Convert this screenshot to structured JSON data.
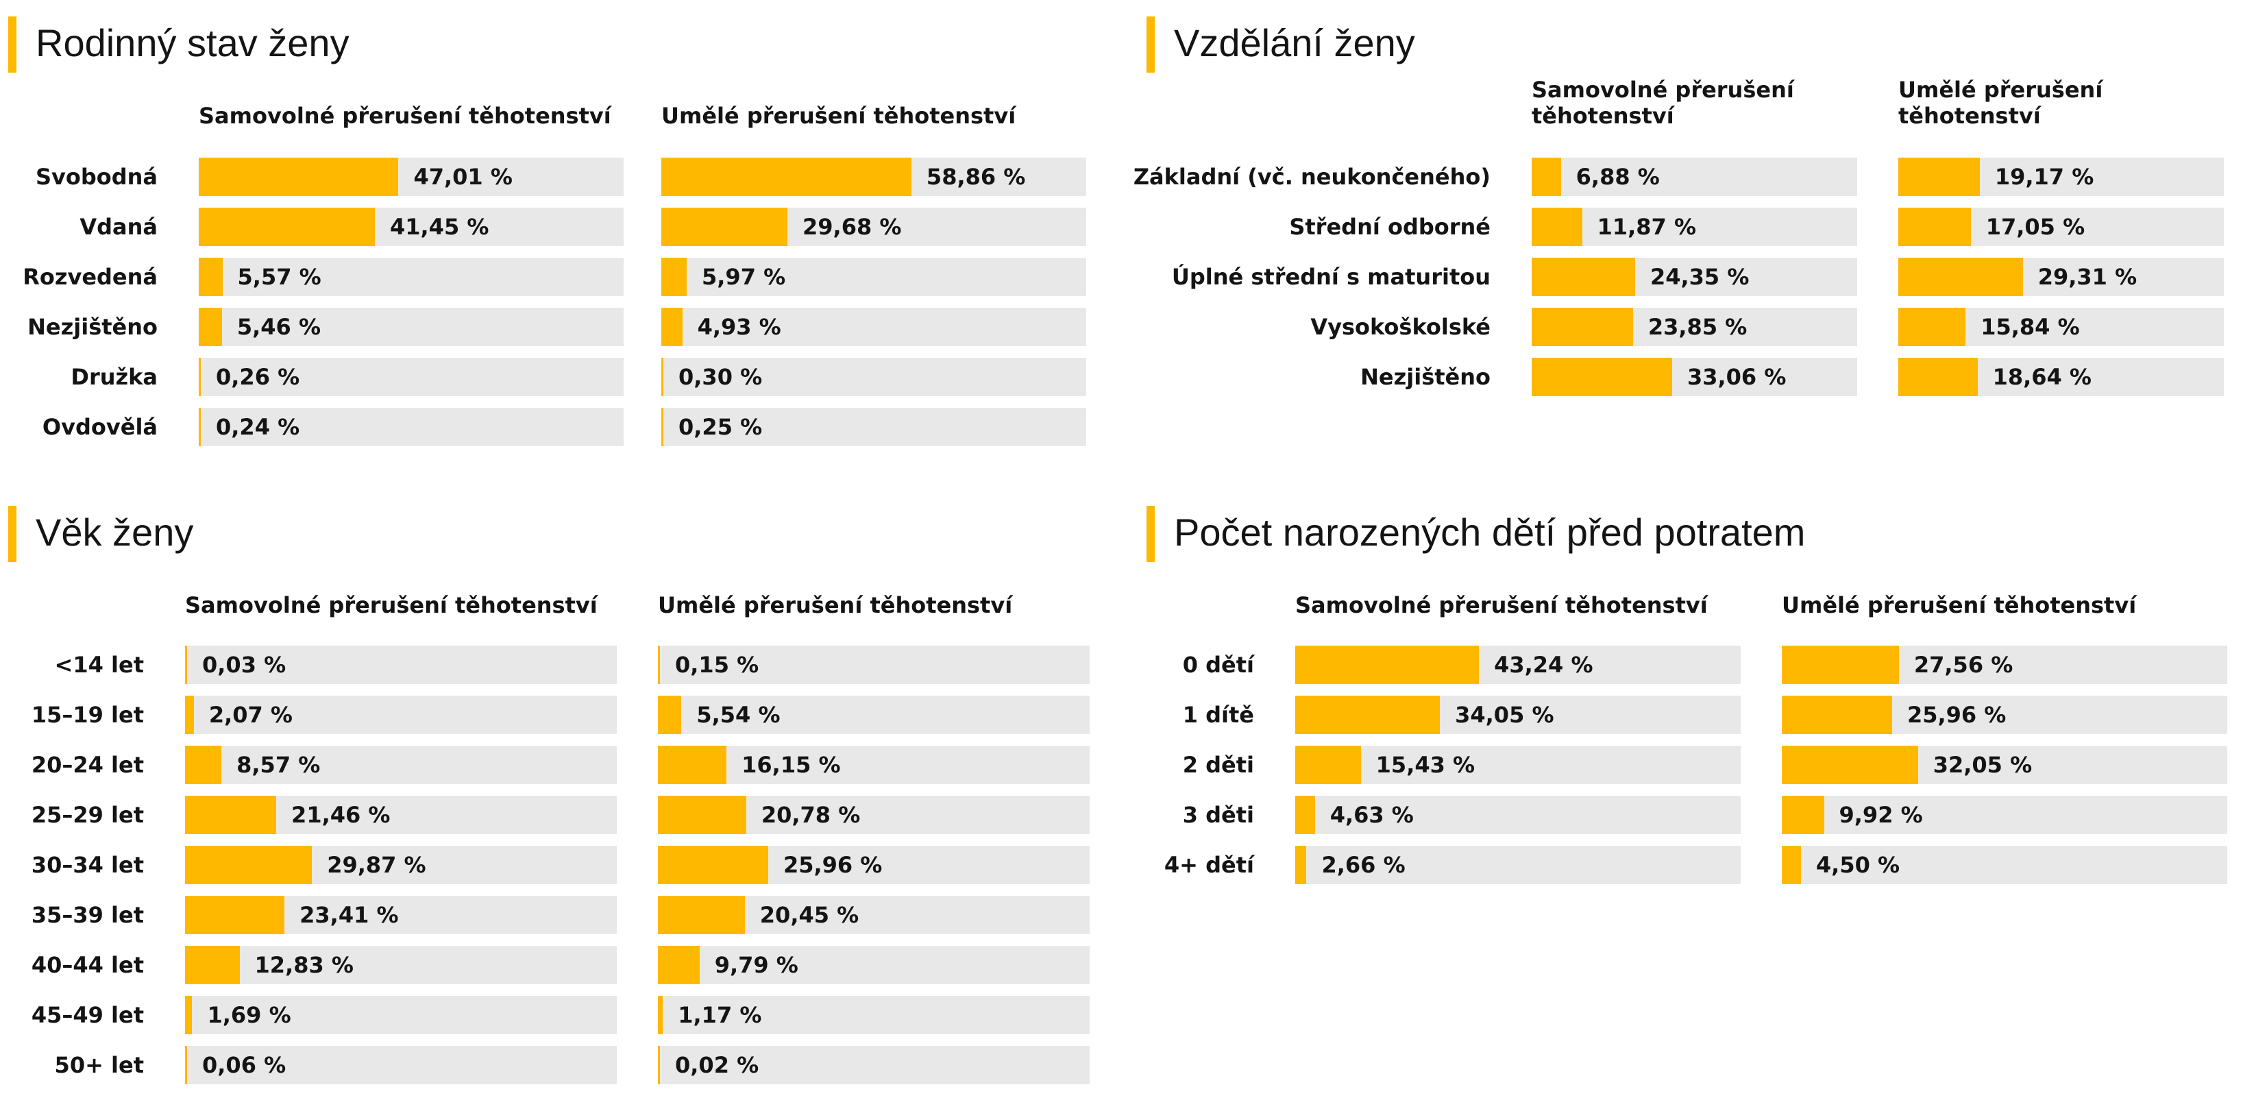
{
  "colors": {
    "accent": "#FFB800",
    "track": "#E8E8E8",
    "text": "#141414"
  },
  "chart_data": [
    {
      "type": "bar",
      "title": "Rodinný stav ženy",
      "categories": [
        "Svobodná",
        "Vdaná",
        "Rozvedená",
        "Nezjištěno",
        "Družka",
        "Ovdovělá"
      ],
      "xlim": [
        0,
        100
      ],
      "series": [
        {
          "name": "Samovolné přerušení těhotenství",
          "values": [
            47.01,
            41.45,
            5.57,
            5.46,
            0.26,
            0.24
          ],
          "labels": [
            "47,01 %",
            "41,45 %",
            "5,57 %",
            "5,46 %",
            "0,26 %",
            "0,24 %"
          ]
        },
        {
          "name": "Umělé přerušení těhotenství",
          "values": [
            58.86,
            29.68,
            5.97,
            4.93,
            0.3,
            0.25
          ],
          "labels": [
            "58,86 %",
            "29,68 %",
            "5,97 %",
            "4,93 %",
            "0,30 %",
            "0,25 %"
          ]
        }
      ]
    },
    {
      "type": "bar",
      "title": "Vzdělání ženy",
      "categories": [
        "Základní (vč. neukončeného)",
        "Střední odborné",
        "Úplné střední s maturitou",
        "Vysokoškolské",
        "Nezjištěno"
      ],
      "xlim": [
        0,
        100
      ],
      "series": [
        {
          "name": "Samovolné přerušení\ntěhotenství",
          "values": [
            6.88,
            11.87,
            24.35,
            23.85,
            33.06
          ],
          "labels": [
            "6,88 %",
            "11,87 %",
            "24,35 %",
            "23,85 %",
            "33,06 %"
          ]
        },
        {
          "name": "Umělé přerušení\ntěhotenství",
          "values": [
            19.17,
            17.05,
            29.31,
            15.84,
            18.64
          ],
          "labels": [
            "19,17 %",
            "17,05 %",
            "29,31 %",
            "15,84 %",
            "18,64 %"
          ]
        }
      ]
    },
    {
      "type": "bar",
      "title": "Věk ženy",
      "categories": [
        "<14 let",
        "15–19 let",
        "20–24 let",
        "25–29 let",
        "30–34 let",
        "35–39 let",
        "40–44 let",
        "45–49 let",
        "50+ let"
      ],
      "xlim": [
        0,
        100
      ],
      "series": [
        {
          "name": "Samovolné přerušení těhotenství",
          "values": [
            0.03,
            2.07,
            8.57,
            21.46,
            29.87,
            23.41,
            12.83,
            1.69,
            0.06
          ],
          "labels": [
            "0,03 %",
            "2,07 %",
            "8,57 %",
            "21,46 %",
            "29,87 %",
            "23,41 %",
            "12,83 %",
            "1,69 %",
            "0,06 %"
          ]
        },
        {
          "name": "Umělé přerušení těhotenství",
          "values": [
            0.15,
            5.54,
            16.15,
            20.78,
            25.96,
            20.45,
            9.79,
            1.17,
            0.02
          ],
          "labels": [
            "0,15 %",
            "5,54 %",
            "16,15 %",
            "20,78 %",
            "25,96 %",
            "20,45 %",
            "9,79 %",
            "1,17 %",
            "0,02 %"
          ]
        }
      ]
    },
    {
      "type": "bar",
      "title": "Počet narozených dětí před potratem",
      "categories": [
        "0 dětí",
        "1 dítě",
        "2 děti",
        "3 děti",
        "4+ dětí"
      ],
      "xlim": [
        0,
        100
      ],
      "series": [
        {
          "name": "Samovolné přerušení těhotenství",
          "values": [
            43.24,
            34.05,
            15.43,
            4.63,
            2.66
          ],
          "labels": [
            "43,24 %",
            "34,05 %",
            "15,43 %",
            "4,63 %",
            "2,66 %"
          ]
        },
        {
          "name": "Umělé přerušení těhotenství",
          "values": [
            27.56,
            25.96,
            32.05,
            9.92,
            4.5
          ],
          "labels": [
            "27,56 %",
            "25,96 %",
            "32,05 %",
            "9,92 %",
            "4,50 %"
          ]
        }
      ]
    }
  ]
}
